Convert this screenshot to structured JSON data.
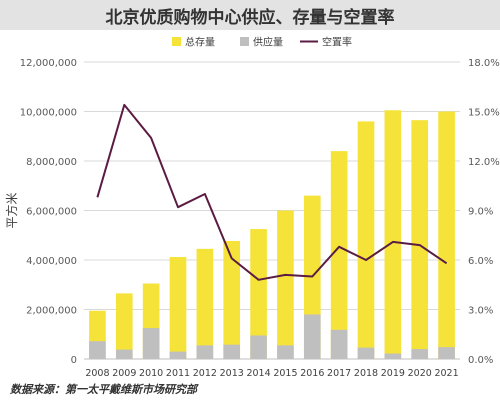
{
  "chart_data": {
    "type": "bar",
    "title": "北京优质购物中心供应、存量与空置率",
    "ylabel_left": "平方米",
    "categories": [
      "2008",
      "2009",
      "2010",
      "2011",
      "2012",
      "2013",
      "2014",
      "2015",
      "2016",
      "2017",
      "2018",
      "2019",
      "2020",
      "2021"
    ],
    "series": [
      {
        "name": "总存量",
        "type": "bar",
        "axis": "left",
        "color": "#f5e33a",
        "values": [
          1950000,
          2650000,
          3050000,
          4120000,
          4450000,
          4770000,
          5250000,
          6000000,
          6600000,
          8400000,
          9600000,
          10050000,
          9650000,
          10000000
        ]
      },
      {
        "name": "供应量",
        "type": "bar",
        "axis": "left",
        "color": "#bfbfbf",
        "values": [
          720000,
          380000,
          1250000,
          300000,
          550000,
          580000,
          950000,
          550000,
          1800000,
          1180000,
          460000,
          220000,
          400000,
          480000
        ]
      },
      {
        "name": "空置率",
        "type": "line",
        "axis": "right",
        "color": "#5b1b43",
        "values": [
          9.8,
          15.4,
          13.4,
          9.2,
          10.0,
          6.1,
          4.8,
          5.1,
          5.0,
          6.8,
          6.0,
          7.1,
          6.9,
          5.8
        ]
      }
    ],
    "y_left": {
      "min": 0,
      "max": 12000000,
      "ticks": [
        "0",
        "2,000,000",
        "4,000,000",
        "6,000,000",
        "8,000,000",
        "10,000,000",
        "12,000,000"
      ]
    },
    "y_right": {
      "min": 0,
      "max": 18,
      "ticks": [
        "0.0%",
        "3.0%",
        "6.0%",
        "9.0%",
        "12.0%",
        "15.0%",
        "18.0%"
      ]
    },
    "legend_position": "top",
    "grid": true,
    "source": "数据来源：第一太平戴维斯市场研究部"
  }
}
